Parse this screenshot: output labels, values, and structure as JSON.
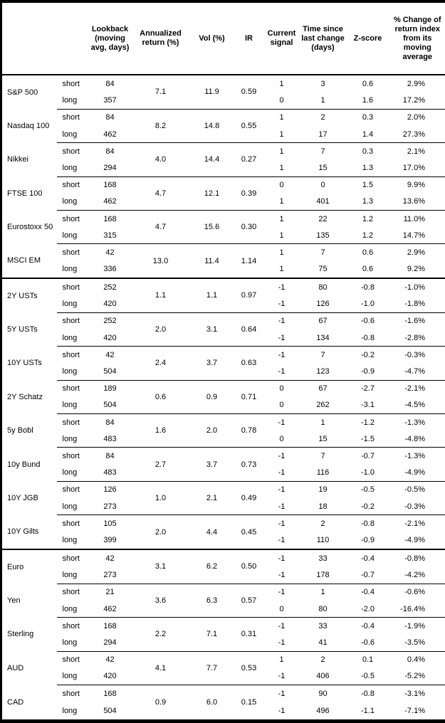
{
  "table": {
    "headers": {
      "asset": "",
      "horizon": "",
      "lookback": "Lookback (moving avg, days)",
      "annualized_return": "Annualized return (%)",
      "vol": "Vol (%)",
      "ir": "IR",
      "current_signal": "Current signal",
      "time_since": "Time since last change (days)",
      "z_score": "Z-score",
      "pct_change": "% Change of return index from its moving average"
    },
    "sections": [
      {
        "assets": [
          {
            "name": "S&P 500",
            "annualized_return": "7.1",
            "vol": "11.9",
            "ir": "0.59",
            "rows": [
              {
                "horizon": "short",
                "lookback": "84",
                "signal": "1",
                "time_since": "3",
                "z": "0.6",
                "pct": "2.9%"
              },
              {
                "horizon": "long",
                "lookback": "357",
                "signal": "0",
                "time_since": "1",
                "z": "1.6",
                "pct": "17.2%"
              }
            ]
          },
          {
            "name": "Nasdaq 100",
            "annualized_return": "8.2",
            "vol": "14.8",
            "ir": "0.55",
            "rows": [
              {
                "horizon": "short",
                "lookback": "84",
                "signal": "1",
                "time_since": "2",
                "z": "0.3",
                "pct": "2.0%"
              },
              {
                "horizon": "long",
                "lookback": "462",
                "signal": "1",
                "time_since": "17",
                "z": "1.4",
                "pct": "27.3%"
              }
            ]
          },
          {
            "name": "Nikkei",
            "annualized_return": "4.0",
            "vol": "14.4",
            "ir": "0.27",
            "rows": [
              {
                "horizon": "short",
                "lookback": "84",
                "signal": "1",
                "time_since": "7",
                "z": "0.3",
                "pct": "2.1%"
              },
              {
                "horizon": "long",
                "lookback": "294",
                "signal": "1",
                "time_since": "15",
                "z": "1.3",
                "pct": "17.0%"
              }
            ]
          },
          {
            "name": "FTSE 100",
            "annualized_return": "4.7",
            "vol": "12.1",
            "ir": "0.39",
            "rows": [
              {
                "horizon": "short",
                "lookback": "168",
                "signal": "0",
                "time_since": "0",
                "z": "1.5",
                "pct": "9.9%"
              },
              {
                "horizon": "long",
                "lookback": "462",
                "signal": "1",
                "time_since": "401",
                "z": "1.3",
                "pct": "13.6%"
              }
            ]
          },
          {
            "name": "Eurostoxx 50",
            "annualized_return": "4.7",
            "vol": "15.6",
            "ir": "0.30",
            "rows": [
              {
                "horizon": "short",
                "lookback": "168",
                "signal": "1",
                "time_since": "22",
                "z": "1.2",
                "pct": "11.0%"
              },
              {
                "horizon": "long",
                "lookback": "315",
                "signal": "1",
                "time_since": "135",
                "z": "1.2",
                "pct": "14.7%"
              }
            ]
          },
          {
            "name": "MSCI EM",
            "annualized_return": "13.0",
            "vol": "11.4",
            "ir": "1.14",
            "rows": [
              {
                "horizon": "short",
                "lookback": "42",
                "signal": "1",
                "time_since": "7",
                "z": "0.6",
                "pct": "2.9%"
              },
              {
                "horizon": "long",
                "lookback": "336",
                "signal": "1",
                "time_since": "75",
                "z": "0.6",
                "pct": "9.2%"
              }
            ]
          }
        ]
      },
      {
        "assets": [
          {
            "name": "2Y USTs",
            "annualized_return": "1.1",
            "vol": "1.1",
            "ir": "0.97",
            "rows": [
              {
                "horizon": "short",
                "lookback": "252",
                "signal": "-1",
                "time_since": "80",
                "z": "-0.8",
                "pct": "-1.0%"
              },
              {
                "horizon": "long",
                "lookback": "420",
                "signal": "-1",
                "time_since": "126",
                "z": "-1.0",
                "pct": "-1.8%"
              }
            ]
          },
          {
            "name": "5Y USTs",
            "annualized_return": "2.0",
            "vol": "3.1",
            "ir": "0.64",
            "rows": [
              {
                "horizon": "short",
                "lookback": "252",
                "signal": "-1",
                "time_since": "67",
                "z": "-0.6",
                "pct": "-1.6%"
              },
              {
                "horizon": "long",
                "lookback": "420",
                "signal": "-1",
                "time_since": "134",
                "z": "-0.8",
                "pct": "-2.8%"
              }
            ]
          },
          {
            "name": "10Y USTs",
            "annualized_return": "2.4",
            "vol": "3.7",
            "ir": "0.63",
            "rows": [
              {
                "horizon": "short",
                "lookback": "42",
                "signal": "-1",
                "time_since": "7",
                "z": "-0.2",
                "pct": "-0.3%"
              },
              {
                "horizon": "long",
                "lookback": "504",
                "signal": "-1",
                "time_since": "123",
                "z": "-0.9",
                "pct": "-4.7%"
              }
            ]
          },
          {
            "name": "2Y Schatz",
            "annualized_return": "0.6",
            "vol": "0.9",
            "ir": "0.71",
            "rows": [
              {
                "horizon": "short",
                "lookback": "189",
                "signal": "0",
                "time_since": "67",
                "z": "-2.7",
                "pct": "-2.1%"
              },
              {
                "horizon": "long",
                "lookback": "504",
                "signal": "0",
                "time_since": "262",
                "z": "-3.1",
                "pct": "-4.5%"
              }
            ]
          },
          {
            "name": "5y Bobl",
            "annualized_return": "1.6",
            "vol": "2.0",
            "ir": "0.78",
            "rows": [
              {
                "horizon": "short",
                "lookback": "84",
                "signal": "-1",
                "time_since": "1",
                "z": "-1.2",
                "pct": "-1.3%"
              },
              {
                "horizon": "long",
                "lookback": "483",
                "signal": "0",
                "time_since": "15",
                "z": "-1.5",
                "pct": "-4.8%"
              }
            ]
          },
          {
            "name": "10y Bund",
            "annualized_return": "2.7",
            "vol": "3.7",
            "ir": "0.73",
            "rows": [
              {
                "horizon": "short",
                "lookback": "84",
                "signal": "-1",
                "time_since": "7",
                "z": "-0.7",
                "pct": "-1.3%"
              },
              {
                "horizon": "long",
                "lookback": "483",
                "signal": "-1",
                "time_since": "116",
                "z": "-1.0",
                "pct": "-4.9%"
              }
            ]
          },
          {
            "name": "10Y JGB",
            "annualized_return": "1.0",
            "vol": "2.1",
            "ir": "0.49",
            "rows": [
              {
                "horizon": "short",
                "lookback": "126",
                "signal": "-1",
                "time_since": "19",
                "z": "-0.5",
                "pct": "-0.5%"
              },
              {
                "horizon": "long",
                "lookback": "273",
                "signal": "-1",
                "time_since": "18",
                "z": "-0.2",
                "pct": "-0.3%"
              }
            ]
          },
          {
            "name": "10Y Gilts",
            "annualized_return": "2.0",
            "vol": "4.4",
            "ir": "0.45",
            "rows": [
              {
                "horizon": "short",
                "lookback": "105",
                "signal": "-1",
                "time_since": "2",
                "z": "-0.8",
                "pct": "-2.1%"
              },
              {
                "horizon": "long",
                "lookback": "399",
                "signal": "-1",
                "time_since": "110",
                "z": "-0.9",
                "pct": "-4.9%"
              }
            ]
          }
        ]
      },
      {
        "assets": [
          {
            "name": "Euro",
            "annualized_return": "3.1",
            "vol": "6.2",
            "ir": "0.50",
            "rows": [
              {
                "horizon": "short",
                "lookback": "42",
                "signal": "-1",
                "time_since": "33",
                "z": "-0.4",
                "pct": "-0.8%"
              },
              {
                "horizon": "long",
                "lookback": "273",
                "signal": "-1",
                "time_since": "178",
                "z": "-0.7",
                "pct": "-4.2%"
              }
            ]
          },
          {
            "name": "Yen",
            "annualized_return": "3.6",
            "vol": "6.3",
            "ir": "0.57",
            "rows": [
              {
                "horizon": "short",
                "lookback": "21",
                "signal": "-1",
                "time_since": "1",
                "z": "-0.4",
                "pct": "-0.6%"
              },
              {
                "horizon": "long",
                "lookback": "462",
                "signal": "0",
                "time_since": "80",
                "z": "-2.0",
                "pct": "-16.4%"
              }
            ]
          },
          {
            "name": "Sterling",
            "annualized_return": "2.2",
            "vol": "7.1",
            "ir": "0.31",
            "rows": [
              {
                "horizon": "short",
                "lookback": "168",
                "signal": "-1",
                "time_since": "33",
                "z": "-0.4",
                "pct": "-1.9%"
              },
              {
                "horizon": "long",
                "lookback": "294",
                "signal": "-1",
                "time_since": "41",
                "z": "-0.6",
                "pct": "-3.5%"
              }
            ]
          },
          {
            "name": "AUD",
            "annualized_return": "4.1",
            "vol": "7.7",
            "ir": "0.53",
            "rows": [
              {
                "horizon": "short",
                "lookback": "42",
                "signal": "1",
                "time_since": "2",
                "z": "0.1",
                "pct": "0.4%"
              },
              {
                "horizon": "long",
                "lookback": "420",
                "signal": "-1",
                "time_since": "406",
                "z": "-0.5",
                "pct": "-5.2%"
              }
            ]
          },
          {
            "name": "CAD",
            "annualized_return": "0.9",
            "vol": "6.0",
            "ir": "0.15",
            "rows": [
              {
                "horizon": "short",
                "lookback": "168",
                "signal": "-1",
                "time_since": "90",
                "z": "-0.8",
                "pct": "-3.1%"
              },
              {
                "horizon": "long",
                "lookback": "504",
                "signal": "-1",
                "time_since": "496",
                "z": "-1.1",
                "pct": "-7.1%"
              }
            ]
          }
        ]
      }
    ]
  }
}
